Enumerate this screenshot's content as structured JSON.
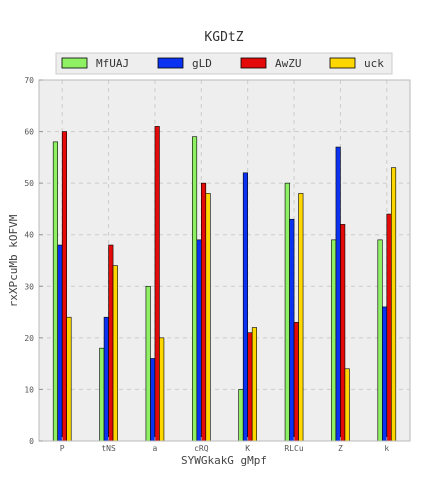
{
  "chart_data": {
    "type": "bar",
    "title": "KGDtZ",
    "xlabel": "SYWGkakG gMpf",
    "ylabel": "rxXPcuMb kOFVM",
    "categories": [
      "P",
      "tNS",
      "a",
      "cRQ",
      "K",
      "RLCu",
      "Z",
      "k"
    ],
    "series": [
      {
        "name": "MfUAJ",
        "color": "#90f064",
        "values": [
          58,
          18,
          30,
          59,
          10,
          50,
          39,
          39
        ]
      },
      {
        "name": "gLD",
        "color": "#0a32f0",
        "values": [
          38,
          24,
          16,
          39,
          52,
          43,
          57,
          26
        ]
      },
      {
        "name": "AwZU",
        "color": "#e40a0a",
        "values": [
          60,
          38,
          61,
          50,
          21,
          23,
          42,
          44
        ]
      },
      {
        "name": "uck",
        "color": "#ffd700",
        "values": [
          24,
          34,
          20,
          48,
          22,
          48,
          14,
          53
        ]
      }
    ],
    "ylim": [
      0,
      70
    ],
    "yticks": [
      0,
      10,
      20,
      30,
      40,
      50,
      60,
      70
    ],
    "grid": true,
    "legend_position": "top"
  }
}
